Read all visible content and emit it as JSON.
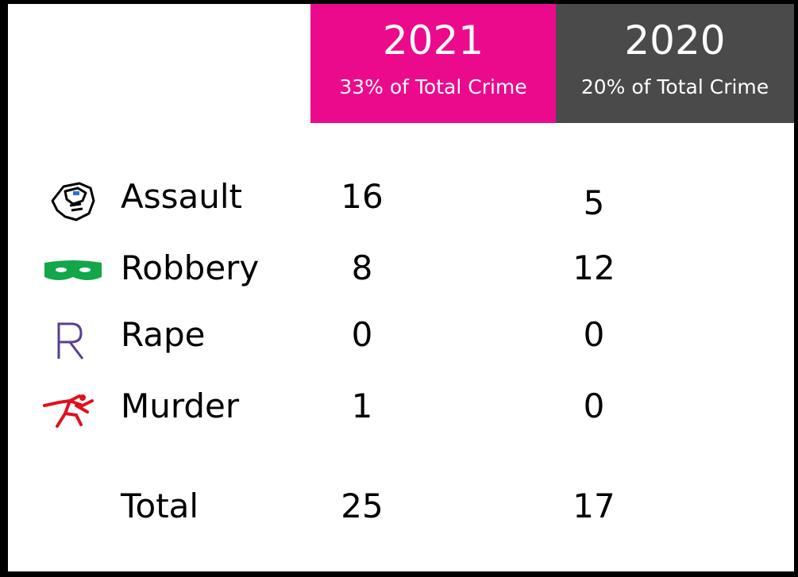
{
  "header": {
    "columns": [
      {
        "year": "2021",
        "subtitle": "33% of Total Crime"
      },
      {
        "year": "2020",
        "subtitle": "20% of Total Crime"
      }
    ]
  },
  "rows": [
    {
      "label": "Assault",
      "values": [
        16,
        5
      ]
    },
    {
      "label": "Robbery",
      "values": [
        8,
        12
      ]
    },
    {
      "label": "Rape",
      "values": [
        0,
        0
      ]
    },
    {
      "label": "Murder",
      "values": [
        1,
        0
      ]
    }
  ],
  "total": {
    "label": "Total",
    "values": [
      25,
      17
    ]
  }
}
